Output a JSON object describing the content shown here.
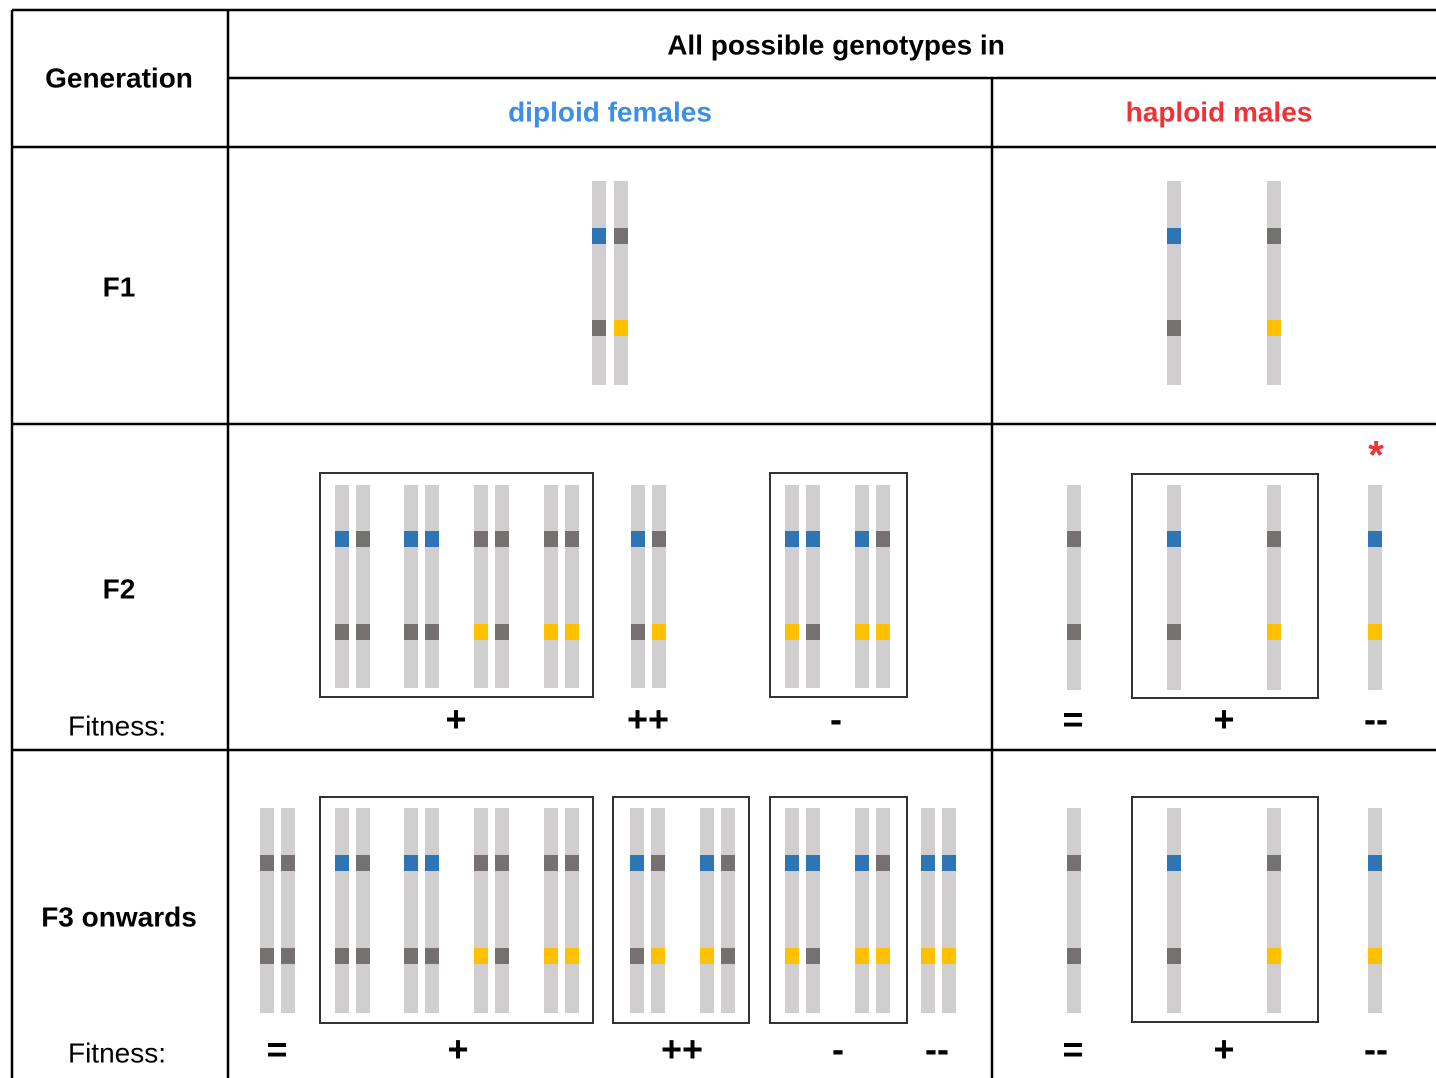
{
  "header": {
    "generation": "Generation",
    "title": "All possible genotypes in",
    "females": "diploid females",
    "males": "haploid males"
  },
  "rows": [
    {
      "generation": "F1"
    },
    {
      "generation": "F2",
      "fitness_label": "Fitness:",
      "female_fitness": [
        "+",
        "++",
        "-"
      ],
      "male_fitness": [
        "=",
        "+",
        "--"
      ],
      "marker": "*"
    },
    {
      "generation": "F3 onwards",
      "fitness_label": "Fitness:",
      "female_fitness": [
        "=",
        "+",
        "++",
        "-",
        "--"
      ],
      "male_fitness": [
        "=",
        "+",
        "--"
      ]
    }
  ]
}
